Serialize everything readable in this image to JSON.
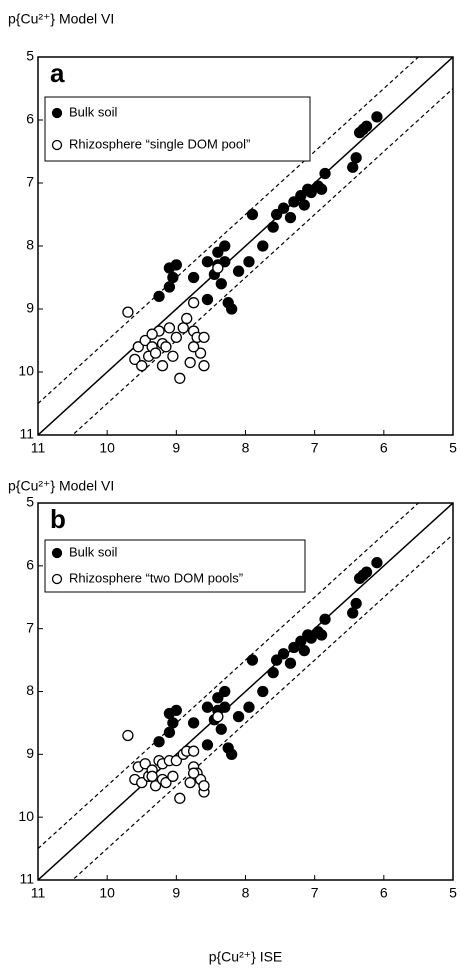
{
  "chart_data": [
    {
      "type": "scatter",
      "title": "a",
      "y_label": "p{Cu²⁺} Model VI",
      "xlim": [
        11,
        5
      ],
      "ylim": [
        11,
        5
      ],
      "xticks": [
        11,
        10,
        9,
        8,
        7,
        6,
        5
      ],
      "yticks": [
        5,
        6,
        7,
        8,
        9,
        10,
        11
      ],
      "reference_lines": [
        {
          "offset": 0,
          "dashed": false
        },
        {
          "offset": -0.5,
          "dashed": true
        },
        {
          "offset": 0.5,
          "dashed": true
        }
      ],
      "series": [
        {
          "name": "Bulk soil",
          "color": "#000000",
          "marker": "filled",
          "x": [
            6.1,
            6.25,
            6.3,
            6.35,
            6.4,
            6.45,
            6.85,
            6.9,
            6.95,
            7.05,
            7.1,
            7.15,
            7.2,
            7.3,
            7.35,
            7.45,
            7.55,
            7.6,
            7.75,
            7.9,
            7.95,
            8.1,
            8.2,
            8.25,
            8.3,
            8.3,
            8.35,
            8.4,
            8.4,
            8.45,
            8.55,
            8.55,
            8.75,
            9.0,
            9.05,
            9.1,
            9.1,
            9.25
          ],
          "values": [
            5.95,
            6.1,
            6.15,
            6.2,
            6.6,
            6.75,
            6.85,
            7.1,
            7.05,
            7.15,
            7.1,
            7.35,
            7.2,
            7.3,
            7.55,
            7.4,
            7.5,
            7.7,
            8.0,
            7.5,
            8.25,
            8.4,
            9.0,
            8.9,
            8.0,
            8.25,
            8.6,
            8.3,
            8.1,
            8.45,
            8.25,
            8.85,
            8.5,
            8.3,
            8.5,
            8.35,
            8.65,
            8.8
          ]
        },
        {
          "name": "Rhizosphere “single DOM pool”",
          "color": "#000000",
          "marker": "open",
          "x": [
            9.7,
            9.6,
            9.55,
            9.5,
            9.45,
            9.4,
            9.35,
            9.3,
            9.25,
            9.2,
            9.2,
            9.15,
            9.1,
            9.05,
            9.0,
            8.95,
            8.9,
            8.85,
            8.8,
            8.75,
            8.75,
            8.7,
            8.65,
            8.6,
            8.6,
            8.4,
            8.75,
            9.35
          ],
          "values": [
            9.05,
            9.8,
            9.6,
            9.9,
            9.5,
            9.75,
            9.6,
            9.7,
            9.35,
            9.9,
            9.55,
            9.6,
            9.3,
            9.75,
            9.45,
            10.1,
            9.3,
            9.15,
            9.85,
            9.35,
            8.9,
            9.45,
            9.7,
            9.9,
            9.45,
            8.35,
            9.6,
            9.4
          ]
        }
      ]
    },
    {
      "type": "scatter",
      "title": "b",
      "y_label": "p{Cu²⁺} Model VI",
      "x_label": "p{Cu²⁺} ISE",
      "xlim": [
        11,
        5
      ],
      "ylim": [
        11,
        5
      ],
      "xticks": [
        11,
        10,
        9,
        8,
        7,
        6,
        5
      ],
      "yticks": [
        5,
        6,
        7,
        8,
        9,
        10,
        11
      ],
      "reference_lines": [
        {
          "offset": 0,
          "dashed": false
        },
        {
          "offset": -0.5,
          "dashed": true
        },
        {
          "offset": 0.5,
          "dashed": true
        }
      ],
      "series": [
        {
          "name": "Bulk soil",
          "color": "#000000",
          "marker": "filled",
          "x": [
            6.1,
            6.25,
            6.3,
            6.35,
            6.4,
            6.45,
            6.85,
            6.9,
            6.95,
            7.05,
            7.1,
            7.15,
            7.2,
            7.3,
            7.35,
            7.45,
            7.55,
            7.6,
            7.75,
            7.9,
            7.95,
            8.1,
            8.2,
            8.25,
            8.3,
            8.3,
            8.35,
            8.4,
            8.4,
            8.45,
            8.55,
            8.55,
            8.75,
            9.0,
            9.05,
            9.1,
            9.1,
            9.25
          ],
          "values": [
            5.95,
            6.1,
            6.15,
            6.2,
            6.6,
            6.75,
            6.85,
            7.1,
            7.05,
            7.15,
            7.1,
            7.35,
            7.2,
            7.3,
            7.55,
            7.4,
            7.5,
            7.7,
            8.0,
            7.5,
            8.25,
            8.4,
            9.0,
            8.9,
            8.0,
            8.25,
            8.6,
            8.3,
            8.1,
            8.45,
            8.25,
            8.85,
            8.5,
            8.3,
            8.5,
            8.35,
            8.65,
            8.8
          ]
        },
        {
          "name": "Rhizosphere “two DOM pools”",
          "color": "#000000",
          "marker": "open",
          "x": [
            9.7,
            9.6,
            9.55,
            9.5,
            9.45,
            9.4,
            9.35,
            9.3,
            9.25,
            9.2,
            9.2,
            9.15,
            9.1,
            9.05,
            9.0,
            8.95,
            8.9,
            8.85,
            8.8,
            8.75,
            8.75,
            8.7,
            8.65,
            8.6,
            8.6,
            8.4,
            8.75,
            9.35
          ],
          "values": [
            8.7,
            9.4,
            9.2,
            9.45,
            9.15,
            9.35,
            9.25,
            9.5,
            9.1,
            9.4,
            9.15,
            9.45,
            9.1,
            9.35,
            9.1,
            9.7,
            9.0,
            8.95,
            9.45,
            9.2,
            8.95,
            9.3,
            9.4,
            9.6,
            9.5,
            8.4,
            9.3,
            9.35
          ]
        }
      ]
    }
  ]
}
